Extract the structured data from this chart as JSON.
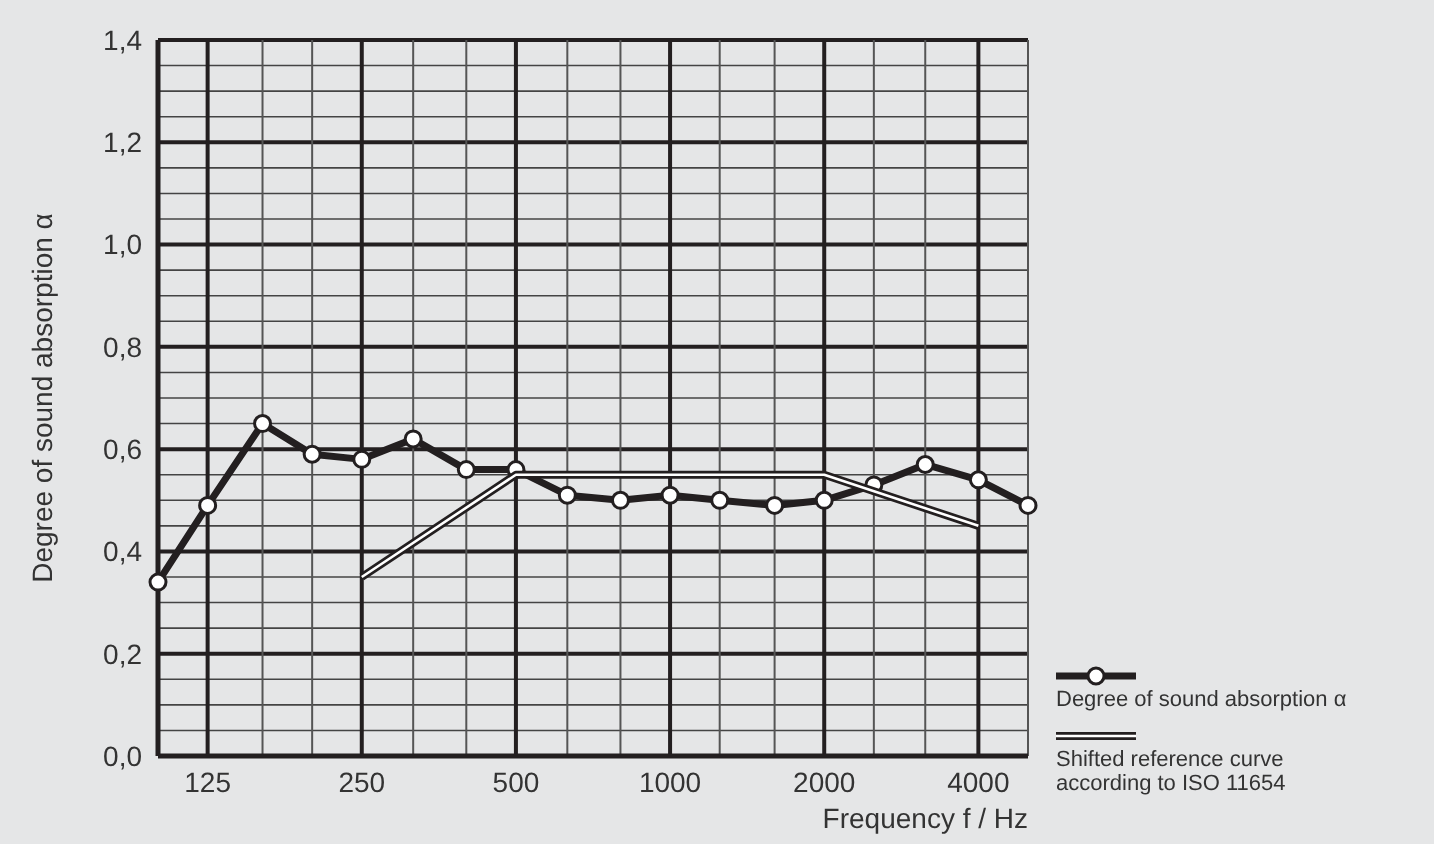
{
  "chart_data": {
    "type": "line",
    "xlabel": "Frequency  f / Hz",
    "ylabel": "Degree of sound absorption α",
    "log": "x",
    "xlim": [
      100,
      5000
    ],
    "xticks": [
      {
        "value": 100,
        "label": null
      },
      125,
      {
        "value": 160,
        "label": null
      },
      {
        "value": 200,
        "label": null
      },
      250,
      {
        "value": 315,
        "label": null
      },
      {
        "value": 400,
        "label": null
      },
      500,
      {
        "value": 630,
        "label": null
      },
      {
        "value": 800,
        "label": null
      },
      1000,
      {
        "value": 1250,
        "label": null
      },
      {
        "value": 1600,
        "label": null
      },
      2000,
      {
        "value": 2500,
        "label": null
      },
      {
        "value": 3150,
        "label": null
      },
      4000,
      {
        "value": 5000,
        "label": null
      }
    ],
    "series": [
      {
        "name": "Degree of sound absorption α",
        "color": "#231f20",
        "marker": "circle",
        "x": [
          100,
          125,
          160,
          200,
          250,
          315,
          400,
          500,
          630,
          800,
          1000,
          1250,
          1600,
          2000,
          2500,
          3150,
          4000,
          5000
        ],
        "values": [
          0.34,
          0.49,
          0.65,
          0.59,
          0.58,
          0.62,
          0.56,
          0.56,
          0.51,
          0.5,
          0.51,
          0.5,
          0.49,
          0.5,
          0.53,
          0.57,
          0.54,
          0.49
        ]
      },
      {
        "name": "Shifted reference curve according to ISO 11654",
        "color": "#231f20",
        "marker": "none",
        "x": [
          250,
          500,
          1000,
          2000,
          4000
        ],
        "values": [
          0.35,
          0.55,
          0.55,
          0.55,
          0.45
        ]
      }
    ],
    "ylim": [
      0,
      1.4
    ],
    "yticks": [
      {
        "value": 0,
        "label": "0,0"
      },
      {
        "value": 0.2,
        "label": "0,2"
      },
      {
        "value": 0.4,
        "label": "0,4"
      },
      {
        "value": 0.6,
        "label": "0,6"
      },
      {
        "value": 0.8,
        "label": "0,8"
      },
      {
        "value": 1.0,
        "label": "1,0"
      },
      {
        "value": 1.2,
        "label": "1,2"
      },
      {
        "value": 1.4,
        "label": "1,4"
      }
    ],
    "grid": true,
    "legend": "bottom right"
  }
}
